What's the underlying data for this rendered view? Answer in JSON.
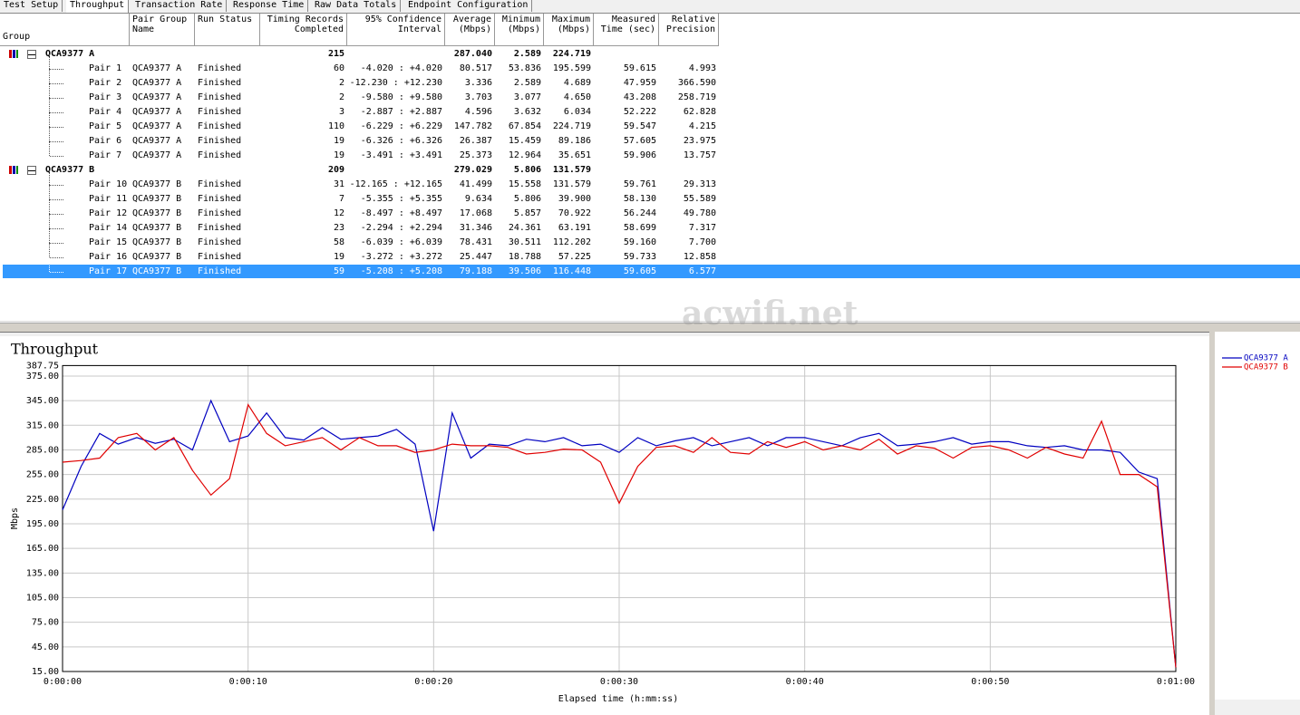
{
  "tabs": [
    "Test Setup",
    "Throughput",
    "Transaction Rate",
    "Response Time",
    "Raw Data Totals",
    "Endpoint Configuration"
  ],
  "watermark": "acwifi.net",
  "table": {
    "headers": [
      "Group",
      "Pair Group Name",
      "Run Status",
      "Timing Records Completed",
      "95% Confidence Interval",
      "Average (Mbps)",
      "Minimum (Mbps)",
      "Maximum (Mbps)",
      "Measured Time (sec)",
      "Relative Precision"
    ],
    "groups": [
      {
        "name": "QCA9377 A",
        "records": "215",
        "average": "287.040",
        "minimum": "2.589",
        "maximum": "224.719",
        "pairs": [
          [
            "Pair 1",
            "QCA9377 A",
            "Finished",
            "60",
            "-4.020 : +4.020",
            "80.517",
            "53.836",
            "195.599",
            "59.615",
            "4.993"
          ],
          [
            "Pair 2",
            "QCA9377 A",
            "Finished",
            "2",
            "-12.230 : +12.230",
            "3.336",
            "2.589",
            "4.689",
            "47.959",
            "366.590"
          ],
          [
            "Pair 3",
            "QCA9377 A",
            "Finished",
            "2",
            "-9.580 : +9.580",
            "3.703",
            "3.077",
            "4.650",
            "43.208",
            "258.719"
          ],
          [
            "Pair 4",
            "QCA9377 A",
            "Finished",
            "3",
            "-2.887 : +2.887",
            "4.596",
            "3.632",
            "6.034",
            "52.222",
            "62.828"
          ],
          [
            "Pair 5",
            "QCA9377 A",
            "Finished",
            "110",
            "-6.229 : +6.229",
            "147.782",
            "67.854",
            "224.719",
            "59.547",
            "4.215"
          ],
          [
            "Pair 6",
            "QCA9377 A",
            "Finished",
            "19",
            "-6.326 : +6.326",
            "26.387",
            "15.459",
            "89.186",
            "57.605",
            "23.975"
          ],
          [
            "Pair 7",
            "QCA9377 A",
            "Finished",
            "19",
            "-3.491 : +3.491",
            "25.373",
            "12.964",
            "35.651",
            "59.906",
            "13.757"
          ]
        ]
      },
      {
        "name": "QCA9377 B",
        "records": "209",
        "average": "279.029",
        "minimum": "5.806",
        "maximum": "131.579",
        "pairs": [
          [
            "Pair 10",
            "QCA9377 B",
            "Finished",
            "31",
            "-12.165 : +12.165",
            "41.499",
            "15.558",
            "131.579",
            "59.761",
            "29.313"
          ],
          [
            "Pair 11",
            "QCA9377 B",
            "Finished",
            "7",
            "-5.355 : +5.355",
            "9.634",
            "5.806",
            "39.900",
            "58.130",
            "55.589"
          ],
          [
            "Pair 12",
            "QCA9377 B",
            "Finished",
            "12",
            "-8.497 : +8.497",
            "17.068",
            "5.857",
            "70.922",
            "56.244",
            "49.780"
          ],
          [
            "Pair 14",
            "QCA9377 B",
            "Finished",
            "23",
            "-2.294 : +2.294",
            "31.346",
            "24.361",
            "63.191",
            "58.699",
            "7.317"
          ],
          [
            "Pair 15",
            "QCA9377 B",
            "Finished",
            "58",
            "-6.039 : +6.039",
            "78.431",
            "30.511",
            "112.202",
            "59.160",
            "7.700"
          ],
          [
            "Pair 16",
            "QCA9377 B",
            "Finished",
            "19",
            "-3.272 : +3.272",
            "25.447",
            "18.788",
            "57.225",
            "59.733",
            "12.858"
          ],
          [
            "Pair 17",
            "QCA9377 B",
            "Finished",
            "59",
            "-5.208 : +5.208",
            "79.188",
            "39.506",
            "116.448",
            "59.605",
            "6.577"
          ]
        ]
      }
    ]
  },
  "chart_data": {
    "type": "line",
    "title": "Throughput",
    "x_label": "Elapsed time (h:mm:ss)",
    "y_label": "Mbps",
    "x": [
      0,
      1,
      2,
      3,
      4,
      5,
      6,
      7,
      8,
      9,
      10,
      11,
      12,
      13,
      14,
      15,
      16,
      17,
      18,
      19,
      20,
      21,
      22,
      23,
      24,
      25,
      26,
      27,
      28,
      29,
      30,
      31,
      32,
      33,
      34,
      35,
      36,
      37,
      38,
      39,
      40,
      41,
      42,
      43,
      44,
      45,
      46,
      47,
      48,
      49,
      50,
      51,
      52,
      53,
      54,
      55,
      56,
      57,
      58,
      59,
      60
    ],
    "xlim": [
      0,
      60
    ],
    "xticks": [
      {
        "value": 0,
        "label": "0:00:00"
      },
      {
        "value": 10,
        "label": "0:00:10"
      },
      {
        "value": 20,
        "label": "0:00:20"
      },
      {
        "value": 30,
        "label": "0:00:30"
      },
      {
        "value": 40,
        "label": "0:00:40"
      },
      {
        "value": 50,
        "label": "0:00:50"
      },
      {
        "value": 60,
        "label": "0:01:00"
      }
    ],
    "ylim": [
      15,
      387.75
    ],
    "yticks": [
      {
        "value": 15,
        "label": "15.00"
      },
      {
        "value": 45,
        "label": "45.00"
      },
      {
        "value": 75,
        "label": "75.00"
      },
      {
        "value": 105,
        "label": "105.00"
      },
      {
        "value": 135,
        "label": "135.00"
      },
      {
        "value": 165,
        "label": "165.00"
      },
      {
        "value": 195,
        "label": "195.00"
      },
      {
        "value": 225,
        "label": "225.00"
      },
      {
        "value": 255,
        "label": "255.00"
      },
      {
        "value": 285,
        "label": "285.00"
      },
      {
        "value": 315,
        "label": "315.00"
      },
      {
        "value": 345,
        "label": "345.00"
      },
      {
        "value": 375,
        "label": "375.00"
      },
      {
        "value": 387.75,
        "label": "387.75"
      }
    ],
    "grid": true,
    "series": [
      {
        "name": "QCA9377 A",
        "color": "#0000c0",
        "values": [
          212,
          265,
          305,
          292,
          300,
          293,
          298,
          285,
          345,
          295,
          302,
          330,
          300,
          297,
          312,
          298,
          300,
          302,
          310,
          292,
          186,
          330,
          275,
          292,
          290,
          298,
          295,
          300,
          290,
          292,
          282,
          300,
          290,
          296,
          300,
          290,
          295,
          300,
          290,
          300,
          300,
          295,
          290,
          300,
          305,
          290,
          292,
          295,
          300,
          292,
          295,
          295,
          290,
          288,
          290,
          285,
          285,
          282,
          258,
          250,
          20
        ]
      },
      {
        "name": "QCA9377 B",
        "color": "#e00000",
        "values": [
          270,
          272,
          275,
          300,
          305,
          285,
          300,
          260,
          230,
          250,
          340,
          305,
          290,
          295,
          300,
          285,
          300,
          290,
          290,
          282,
          285,
          292,
          290,
          290,
          288,
          280,
          282,
          286,
          285,
          270,
          220,
          265,
          288,
          290,
          282,
          300,
          282,
          280,
          295,
          288,
          295,
          285,
          290,
          285,
          298,
          280,
          290,
          287,
          275,
          288,
          290,
          285,
          275,
          288,
          280,
          275,
          320,
          255,
          255,
          240,
          20
        ]
      }
    ]
  }
}
